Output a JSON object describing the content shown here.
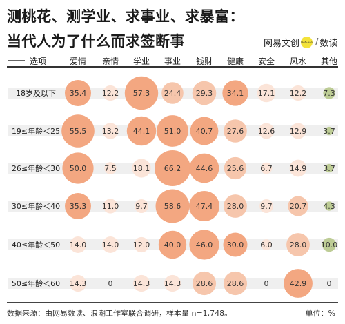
{
  "header": {
    "title_line1": "测桃花、测学业、求事业、求暴富：",
    "title_line2": "当代人为了什么而求签断事",
    "brand_name": "网易文创",
    "brand_badge": "NetEase",
    "brand_sep": "/",
    "brand_sub": "数读"
  },
  "footer": {
    "source": "数据来源：由网易数读、浪潮工作室联合调研，样本量 n=1,748。",
    "unit": "单位：%"
  },
  "colors": {
    "bubble_dark": "#f2a27a",
    "bubble_light": "#fbe3d6",
    "bubble_green": "#b9c98f",
    "band": "#efefef",
    "text": "#333333"
  },
  "chart_data": {
    "type": "table",
    "row_header": "选项",
    "categories": [
      "爱情",
      "亲情",
      "学业",
      "事业",
      "钱财",
      "健康",
      "安全",
      "风水",
      "其他"
    ],
    "rows": [
      {
        "label": "18岁及以下",
        "values": [
          35.4,
          12.2,
          57.3,
          24.4,
          29.3,
          34.1,
          17.1,
          12.2,
          7.3
        ]
      },
      {
        "label": "19≤年龄＜25",
        "values": [
          55.5,
          13.2,
          44.1,
          51.0,
          40.7,
          27.6,
          12.6,
          12.9,
          3.7
        ]
      },
      {
        "label": "26≤年龄＜30",
        "values": [
          50.0,
          7.5,
          18.1,
          66.2,
          44.6,
          25.6,
          6.7,
          14.9,
          3.7
        ]
      },
      {
        "label": "30≤年龄＜40",
        "values": [
          35.3,
          11.0,
          9.7,
          58.6,
          47.4,
          28.0,
          9.7,
          20.7,
          4.3
        ]
      },
      {
        "label": "40≤年龄＜50",
        "values": [
          14.0,
          14.0,
          12.0,
          40.0,
          46.0,
          30.0,
          6.0,
          28.0,
          10.0
        ]
      },
      {
        "label": "50≤年龄＜60",
        "values": [
          14.3,
          0,
          14.3,
          14.3,
          28.6,
          28.6,
          0,
          42.9,
          0
        ]
      }
    ],
    "value_labels": [
      [
        "35.4",
        "12.2",
        "57.3",
        "24.4",
        "29.3",
        "34.1",
        "17.1",
        "12.2",
        "7.3"
      ],
      [
        "55.5",
        "13.2",
        "44.1",
        "51.0",
        "40.7",
        "27.6",
        "12.6",
        "12.9",
        "3.7"
      ],
      [
        "50.0",
        "7.5",
        "18.1",
        "66.2",
        "44.6",
        "25.6",
        "6.7",
        "14.9",
        "3.7"
      ],
      [
        "35.3",
        "11.0",
        "9.7",
        "58.6",
        "47.4",
        "28.0",
        "9.7",
        "20.7",
        "4.3"
      ],
      [
        "14.0",
        "14.0",
        "12.0",
        "40.0",
        "46.0",
        "30.0",
        "6.0",
        "28.0",
        "10.0"
      ],
      [
        "14.3",
        "0",
        "14.3",
        "14.3",
        "28.6",
        "28.6",
        "0",
        "42.9",
        "0"
      ]
    ]
  }
}
